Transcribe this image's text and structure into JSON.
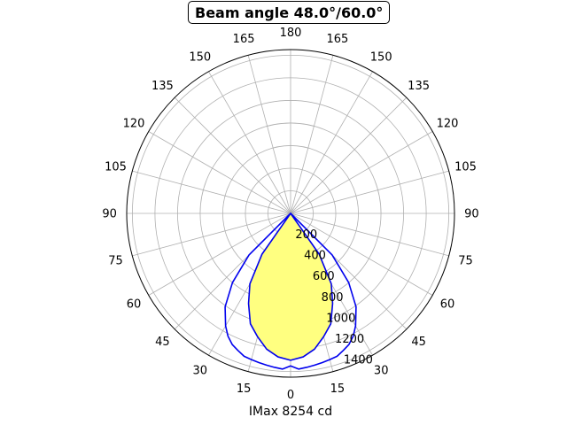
{
  "chart_data": {
    "type": "polar",
    "title": "Beam angle 48.0°/60.0°",
    "xlabel": "IMax 8254 cd",
    "angle_tick_labels": [
      "0",
      "15",
      "30",
      "45",
      "60",
      "75",
      "90",
      "105",
      "120",
      "135",
      "150",
      "165",
      "180",
      "165",
      "150",
      "135",
      "120",
      "105",
      "90",
      "75",
      "60",
      "45",
      "30",
      "15"
    ],
    "radial_tick_labels": [
      "200",
      "400",
      "600",
      "800",
      "1000",
      "1200",
      "1400"
    ],
    "radial_ticks": [
      200,
      400,
      600,
      800,
      1000,
      1200,
      1400
    ],
    "rlim": [
      0,
      1450
    ],
    "grid": true,
    "colors": {
      "curve": "#0000ee",
      "fill": "#ffff80",
      "grid": "#b0b0b0"
    },
    "series": [
      {
        "angles_deg": [
          -50,
          -45,
          -40,
          -35,
          -30,
          -27,
          -24,
          -21,
          -18,
          -15,
          -12,
          -9,
          -6,
          -3,
          0,
          3,
          6,
          9,
          12,
          15,
          18,
          21,
          24,
          27,
          30,
          35,
          40,
          45,
          50
        ],
        "values": [
          0,
          520,
          800,
          1010,
          1150,
          1220,
          1270,
          1300,
          1330,
          1340,
          1350,
          1360,
          1370,
          1380,
          1350,
          1380,
          1370,
          1360,
          1350,
          1340,
          1330,
          1300,
          1270,
          1220,
          1150,
          1010,
          800,
          520,
          0
        ]
      },
      {
        "angles_deg": [
          -40,
          -35,
          -30,
          -25,
          -20,
          -15,
          -10,
          -5,
          0,
          5,
          10,
          15,
          20,
          25,
          30,
          35,
          40
        ],
        "values": [
          0,
          440,
          720,
          880,
          1040,
          1130,
          1220,
          1275,
          1300,
          1275,
          1220,
          1130,
          1040,
          880,
          720,
          440,
          0
        ]
      }
    ]
  }
}
